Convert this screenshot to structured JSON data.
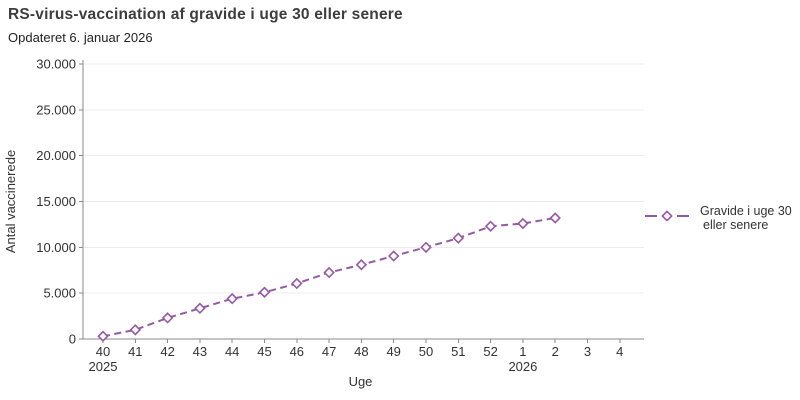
{
  "header": {
    "title": "RS-virus-vaccination af gravide i uge 30 eller senere",
    "subtitle": "Opdateret 6. januar 2026"
  },
  "chart_data": {
    "type": "line",
    "title": "RS-virus-vaccination af gravide i uge 30 eller senere",
    "xlabel": "Uge",
    "ylabel": "Antal vaccinerede",
    "categories": [
      "40",
      "41",
      "42",
      "43",
      "44",
      "45",
      "46",
      "47",
      "48",
      "49",
      "50",
      "51",
      "52",
      "1",
      "2",
      "3",
      "4"
    ],
    "year_labels": [
      {
        "index": 0,
        "label": "2025"
      },
      {
        "index": 13,
        "label": "2026"
      }
    ],
    "ylim": [
      0,
      30000
    ],
    "ytick_step": 5000,
    "ytick_labels": [
      "0",
      "5.000",
      "10.000",
      "15.000",
      "20.000",
      "25.000",
      "30.000"
    ],
    "grid": "horizontal",
    "legend_position": "right",
    "series": [
      {
        "name": "Gravide i uge 30 eller senere",
        "legend_lines": [
          "Gravide i uge 30",
          "eller senere"
        ],
        "color": "#9559a5",
        "line_style": "dashed",
        "marker": "diamond-open",
        "values": [
          300,
          1000,
          2300,
          3350,
          4400,
          5100,
          6050,
          7250,
          8100,
          9050,
          10000,
          11000,
          12300,
          12600,
          13200,
          null,
          null
        ]
      }
    ]
  },
  "colors": {
    "series_purple": "#9559a5",
    "gridline": "#ececec",
    "axis": "#8a8a8a",
    "tick_text": "#333333",
    "title_text": "#3d3d3d"
  }
}
